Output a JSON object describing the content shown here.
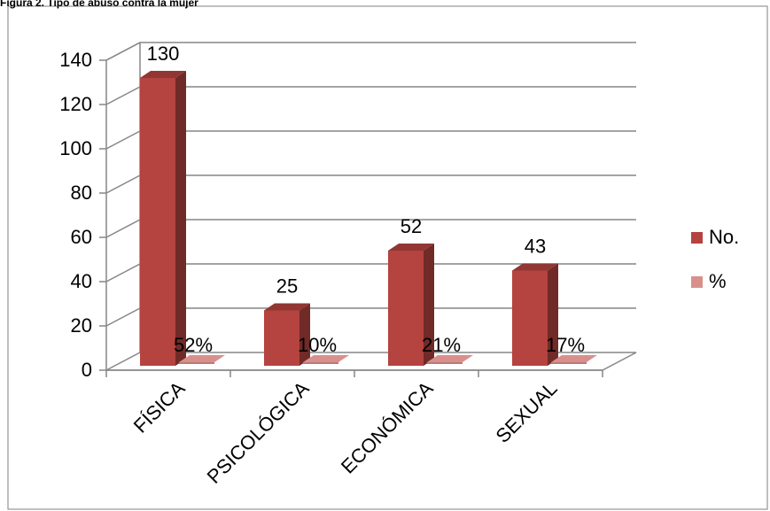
{
  "caption": "Figura 2. Tipo de abuso contra la mujer",
  "chart_data": {
    "type": "bar",
    "title": "",
    "xlabel": "",
    "ylabel": "",
    "categories": [
      "FÍSICA",
      "PSICOLÓGICA",
      "ECONÓMICA",
      "SEXUAL"
    ],
    "series": [
      {
        "name": "No.",
        "values": [
          130,
          25,
          52,
          43
        ],
        "labels": [
          "130",
          "25",
          "52",
          "43"
        ],
        "color": "#b5433f"
      },
      {
        "name": "%",
        "values": [
          0.52,
          0.1,
          0.21,
          0.17
        ],
        "labels": [
          "52%",
          "10%",
          "21%",
          "17%"
        ],
        "color": "#d9908c"
      }
    ],
    "ylim": [
      0,
      140
    ],
    "yticks": [
      "0",
      "20",
      "40",
      "60",
      "80",
      "100",
      "120",
      "140"
    ],
    "grid": true,
    "legend": "right",
    "three_d": true
  }
}
